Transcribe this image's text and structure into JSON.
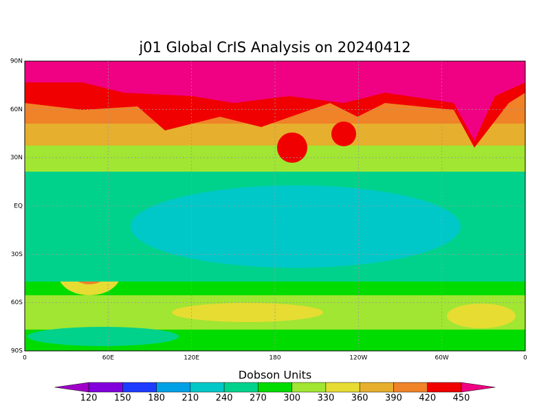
{
  "chart_data": {
    "type": "map",
    "title": "j01 Global CrIS Analysis on 20240412",
    "xlim": [
      0,
      360
    ],
    "xticks": [
      0,
      {
        "value": 60,
        "label": "60E"
      },
      {
        "value": 120,
        "label": "120E"
      },
      180,
      {
        "value": 240,
        "label": "120W"
      },
      {
        "value": 300,
        "label": "60W"
      },
      {
        "value": 360,
        "label": "0"
      }
    ],
    "ylim": [
      -90,
      90
    ],
    "yticks": [
      {
        "value": -90,
        "label": "90S"
      },
      {
        "value": -60,
        "label": "60S"
      },
      {
        "value": -30,
        "label": "30S"
      },
      {
        "value": 0,
        "label": "EQ"
      },
      {
        "value": 30,
        "label": "30N"
      },
      {
        "value": 60,
        "label": "60N"
      },
      {
        "value": 90,
        "label": "90N"
      }
    ],
    "grid": true,
    "colorbar": {
      "label": "Dobson Units",
      "levels": [
        120,
        150,
        180,
        210,
        240,
        270,
        300,
        330,
        360,
        390,
        420,
        450
      ],
      "colors": [
        "#a000c8",
        "#8200dc",
        "#1e3cff",
        "#00a0e6",
        "#00c8c8",
        "#00d28c",
        "#00dc00",
        "#a0e632",
        "#e6dc32",
        "#e6af2d",
        "#f08228",
        "#f00000",
        "#f00082"
      ]
    }
  }
}
